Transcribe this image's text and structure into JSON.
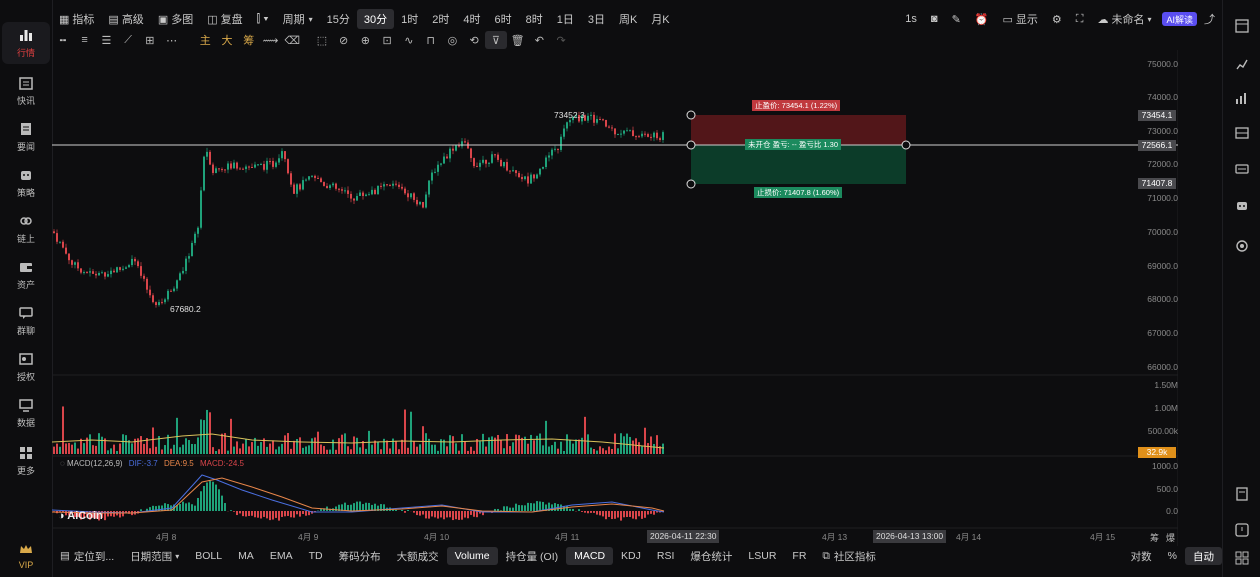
{
  "sidebar": {
    "items": [
      {
        "label": "行情",
        "icon": "chart-bars-icon",
        "active": true
      },
      {
        "label": "快讯",
        "icon": "news-flash-icon"
      },
      {
        "label": "要闻",
        "icon": "document-icon"
      },
      {
        "label": "策略",
        "icon": "robot-icon"
      },
      {
        "label": "链上",
        "icon": "link-chain-icon"
      },
      {
        "label": "资产",
        "icon": "wallet-icon"
      },
      {
        "label": "群聊",
        "icon": "chat-icon"
      },
      {
        "label": "授权",
        "icon": "key-icon"
      },
      {
        "label": "数据",
        "icon": "monitor-icon"
      },
      {
        "label": "更多",
        "icon": "grid-icon"
      }
    ],
    "vip": "VIP"
  },
  "toolbar": {
    "indicators": "指标",
    "advanced": "高级",
    "multi_chart": "多图",
    "replay": "复盘",
    "period": "周期",
    "intervals": [
      "15分",
      "30分",
      "1时",
      "2时",
      "4时",
      "6时",
      "8时",
      "1日",
      "3日",
      "周K",
      "月K"
    ],
    "selected_interval": "30分",
    "right": {
      "interval_1s": "1s",
      "display": "显示",
      "unnamed": "未命名",
      "ai": "AI解读"
    }
  },
  "drawing_tools": {
    "main": "主",
    "big": "大",
    "chip": "筹"
  },
  "chart": {
    "price_axis": [
      "75000.0",
      "74000.0",
      "73000.0",
      "72000.0",
      "71000.0",
      "70000.0",
      "69000.0",
      "68000.0",
      "67000.0",
      "66000.0"
    ],
    "volume_axis": [
      "1.50M",
      "1.00M",
      "500.00k"
    ],
    "volume_tag": "32.9k",
    "macd_axis": [
      "1000.0",
      "500.0",
      "0.0"
    ],
    "current_price": "72566.1",
    "take_profit_tag": "73454.1",
    "stop_loss_tag": "71407.8",
    "high_label": "73452.3",
    "low_label": "67680.2",
    "take_profit_text": "止盈价: 73454.1 (1.22%)",
    "position_text": "未开仓 盈亏: -- 盈亏比 1.30",
    "stop_loss_text": "止损价: 71407.8 (1.60%)",
    "macd_title": "MACD(12,26,9)",
    "macd_dif": "DIF:-3.7",
    "macd_dea": "DEA:9.5",
    "macd_val": "MACD:-24.5",
    "dates": [
      "4月 8",
      "4月 9",
      "4月 10",
      "4月 11",
      "4月 13",
      "4月 14",
      "4月 15"
    ],
    "time_tag_1": "2026-04-11 22:30",
    "time_tag_2": "2026-04-13 13:00",
    "brand": "AiCoin",
    "settings_a": "筹",
    "settings_b": "爆",
    "colors": {
      "up": "#1fa27a",
      "down": "#d9454a",
      "tp": "#7a1e22",
      "sl": "#0f4a34"
    }
  },
  "bottombar": {
    "locate": "定位到...",
    "date_range": "日期范围",
    "items": [
      "BOLL",
      "MA",
      "EMA",
      "TD",
      "筹码分布",
      "大额成交"
    ],
    "volume": "Volume",
    "oi": "持仓量 (OI)",
    "macd": "MACD",
    "kdj": "KDJ",
    "rsi": "RSI",
    "liq": "爆仓统计",
    "lsur": "LSUR",
    "fr": "FR",
    "community": "社区指标",
    "log": "对数",
    "pct": "%",
    "auto": "自动"
  }
}
